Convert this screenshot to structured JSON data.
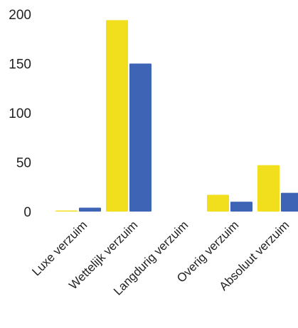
{
  "chart_data": {
    "type": "bar",
    "categories": [
      "Luxe verzuim",
      "Wettelijk verzuim",
      "Langdurig verzuim",
      "Overig verzuim",
      "Absoluut verzuim"
    ],
    "series": [
      {
        "color": "#f1df1e",
        "values": [
          1,
          194,
          0,
          17,
          47
        ]
      },
      {
        "color": "#3e64b5",
        "values": [
          4,
          150,
          0,
          10,
          19
        ]
      }
    ],
    "y_ticks": [
      "0",
      "50",
      "100",
      "150",
      "200"
    ],
    "ylim": [
      0,
      200
    ],
    "grid": false,
    "legend": "none",
    "title": "",
    "xlabel": "",
    "ylabel": ""
  }
}
